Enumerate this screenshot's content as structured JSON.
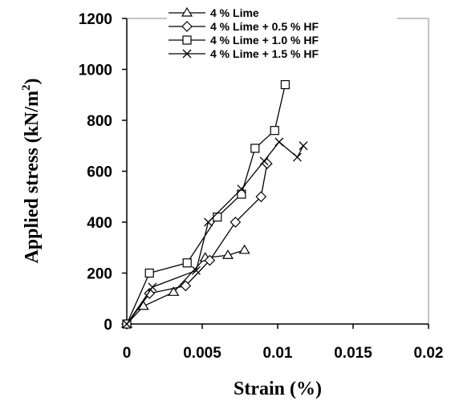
{
  "chart_data": {
    "type": "line",
    "xlabel": "Strain (%)",
    "ylabel": "Applied stress (kN/m",
    "ylabel_superscript": "2",
    "ylabel_suffix": ")",
    "xlim": [
      0,
      0.02
    ],
    "ylim": [
      0,
      1200
    ],
    "x_ticks": [
      "0",
      "0.005",
      "0.01",
      "0.015",
      "0.02"
    ],
    "y_ticks": [
      "0",
      "200",
      "400",
      "600",
      "800",
      "1000",
      "1200"
    ],
    "grid": false,
    "legend_position": "top",
    "series": [
      {
        "name": "4 % Lime",
        "marker": "triangle",
        "x": [
          0,
          0.0011,
          0.0031,
          0.0052,
          0.0067,
          0.0078
        ],
        "y": [
          0,
          70,
          125,
          260,
          270,
          290
        ]
      },
      {
        "name": "4 % Lime + 0.5 % HF",
        "marker": "diamond",
        "x": [
          0,
          0.0015,
          0.0039,
          0.0055,
          0.0072,
          0.0089,
          0.0093
        ],
        "y": [
          0,
          120,
          150,
          250,
          400,
          500,
          630
        ]
      },
      {
        "name": "4 % Lime + 1.0 % HF",
        "marker": "square",
        "x": [
          0,
          0.0015,
          0.004,
          0.006,
          0.0076,
          0.0085,
          0.0098,
          0.0105
        ],
        "y": [
          0,
          200,
          240,
          420,
          510,
          690,
          760,
          940
        ]
      },
      {
        "name": "4 % Lime + 1.5 % HF",
        "marker": "x",
        "x": [
          0,
          0.0017,
          0.0046,
          0.0054,
          0.0076,
          0.0091,
          0.0101,
          0.0113,
          0.0117
        ],
        "y": [
          0,
          145,
          210,
          400,
          530,
          640,
          715,
          655,
          700
        ]
      }
    ]
  }
}
